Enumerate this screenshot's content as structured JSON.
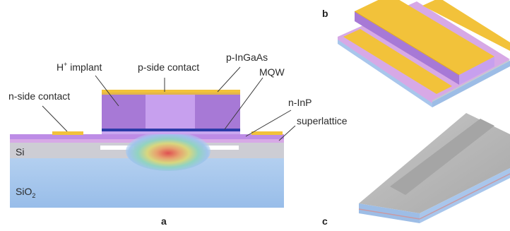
{
  "panels": {
    "a": "a",
    "b": "b",
    "c": "c"
  },
  "labels": {
    "h_implant_main": "H",
    "h_implant_sup": "+",
    "h_implant_rest": " implant",
    "p_side_contact": "p-side contact",
    "p_ingaas": "p-InGaAs",
    "mqw": "MQW",
    "n_side_contact": "n-side contact",
    "n_inp": "n-InP",
    "superlattice": "superlattice",
    "si": "Si",
    "sio2_main": "SiO",
    "sio2_sub": "2"
  },
  "colors": {
    "contact_gold": "#f2c23a",
    "mesa_purple": "#b384e0",
    "mesa_dark": "#9a6cc9",
    "mesa_center": "#c9a0ee",
    "mqw_blue": "#2b3aa8",
    "n_inp_violet": "#c08ee8",
    "superlattice_pink": "#d9a8e6",
    "si_gray": "#cfcfd6",
    "sio2_blue": "#a9c8ee",
    "leader_line": "#3a3a3a",
    "device_c_gray": "#b5b5b5"
  }
}
